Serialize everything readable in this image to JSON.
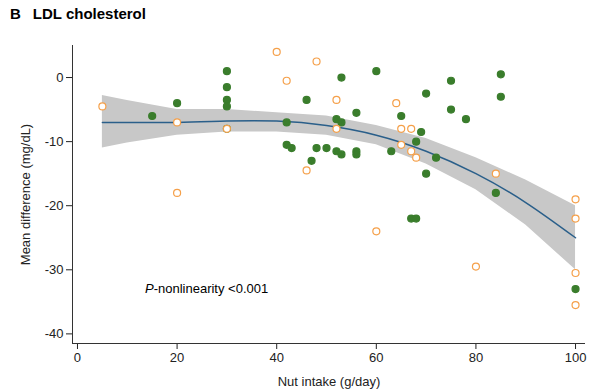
{
  "chart_data": {
    "type": "scatter",
    "panel": "B",
    "title": "LDL cholesterol",
    "x_label": "Nut intake (g/day)",
    "y_label": "Mean difference (mg/dL)",
    "annotation": "P-nonlinearity <0.001",
    "xlim": [
      -1,
      102
    ],
    "xticks": [
      0,
      20,
      40,
      60,
      80,
      100
    ],
    "ylim": [
      -41.5,
      5
    ],
    "yticks": [
      -40,
      -30,
      -20,
      -10,
      0
    ],
    "grid": false,
    "series": [
      {
        "type": "area",
        "color": "#c8c8c8",
        "x": [
          5,
          10,
          20,
          30,
          40,
          50,
          60,
          70,
          80,
          90,
          100
        ],
        "lower": [
          -11,
          -10.2,
          -9,
          -8.5,
          -8.5,
          -9,
          -10.5,
          -13.5,
          -17.5,
          -23,
          -30
        ],
        "upper": [
          -2.8,
          -3.6,
          -5,
          -5,
          -5.5,
          -6,
          -7.5,
          -9.5,
          -12.5,
          -16,
          -20
        ]
      },
      {
        "type": "line",
        "color": "#2a5f8a",
        "x": [
          5,
          10,
          20,
          30,
          40,
          50,
          60,
          70,
          80,
          90,
          100
        ],
        "values": [
          -7,
          -7,
          -7,
          -6.8,
          -6.8,
          -7.5,
          -9,
          -11.5,
          -15,
          -19.5,
          -25
        ]
      },
      {
        "type": "scatter",
        "color": "#3a7d2c",
        "marker": "filled",
        "x": [
          15,
          20,
          30,
          30,
          30,
          30,
          30,
          42,
          42,
          43,
          46,
          47,
          48,
          50,
          52,
          52,
          53,
          53,
          53,
          56,
          56,
          56,
          60,
          63,
          65,
          67,
          68,
          68,
          69,
          70,
          70,
          72,
          75,
          75,
          78,
          84,
          85,
          85,
          100
        ],
        "values": [
          -6,
          -4,
          1,
          -1.5,
          -3.5,
          -4.5,
          -8,
          -7,
          -10.5,
          -11,
          -3.5,
          -13,
          -11,
          -11,
          -6.5,
          -11.5,
          -12,
          -7,
          0,
          -5.5,
          -11.5,
          -12,
          1,
          -11.5,
          -6,
          -22,
          -22,
          -10,
          -8.5,
          -2.5,
          -15,
          -12.5,
          -5,
          -0.5,
          -6.5,
          -18,
          -3,
          0.5,
          -33
        ]
      },
      {
        "type": "scatter",
        "color": "#f5a04a",
        "marker": "open",
        "x": [
          5,
          20,
          20,
          30,
          40,
          42,
          46,
          48,
          52,
          52,
          60,
          64,
          65,
          65,
          67,
          67,
          68,
          80,
          84,
          100,
          100,
          100,
          100
        ],
        "values": [
          -4.5,
          -7,
          -18,
          -8,
          4,
          -0.5,
          -14.5,
          2.5,
          -3.5,
          -8,
          -24,
          -4,
          -8,
          -10.5,
          -8,
          -11.5,
          -12.5,
          -29.5,
          -15,
          -19,
          -22,
          -30.5,
          -35.5
        ]
      }
    ]
  }
}
